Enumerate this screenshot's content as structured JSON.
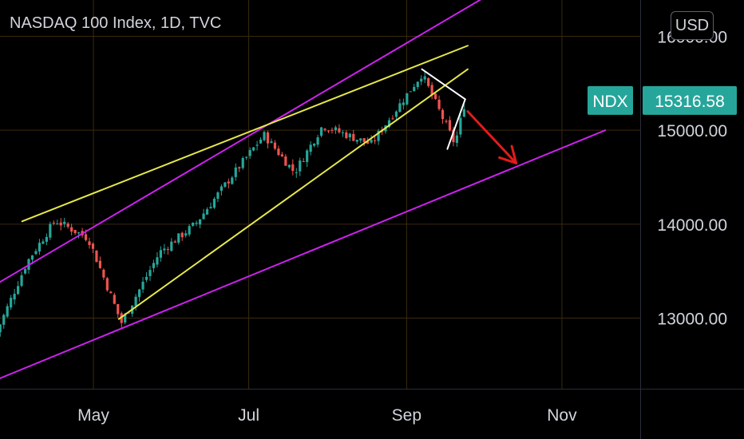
{
  "header": {
    "title": "NASDAQ 100 Index, 1D, TVC",
    "currency_button": "USD"
  },
  "colors": {
    "background": "#000000",
    "grid": "#3a2a10",
    "up": "#26a69a",
    "down": "#ef5350",
    "channel": "#cc22ee",
    "wedge": "#e6e84a",
    "flag": "#ffffff",
    "arrow": "#e31b1b",
    "tag": "#26a69a"
  },
  "chart_data": {
    "type": "candlestick",
    "title": "NASDAQ 100 Index, 1D, TVC",
    "symbol": "NDX",
    "last_price": "15316.58",
    "currency": "USD",
    "y_ticks": [
      "13000.00",
      "14000.00",
      "15000.00",
      "16000.00"
    ],
    "x_ticks": [
      "May",
      "Jul",
      "Sep",
      "Nov"
    ],
    "grid": true,
    "ylim": [
      12220,
      16600
    ],
    "price_path_approx": [
      {
        "date": "2021-03-24",
        "close": 12850
      },
      {
        "date": "2021-04-05",
        "close": 13600
      },
      {
        "date": "2021-04-16",
        "close": 14040
      },
      {
        "date": "2021-04-29",
        "close": 13850
      },
      {
        "date": "2021-05-12",
        "close": 12950
      },
      {
        "date": "2021-05-27",
        "close": 13700
      },
      {
        "date": "2021-06-10",
        "close": 14000
      },
      {
        "date": "2021-06-24",
        "close": 14500
      },
      {
        "date": "2021-07-07",
        "close": 14950
      },
      {
        "date": "2021-07-19",
        "close": 14550
      },
      {
        "date": "2021-07-30",
        "close": 15050
      },
      {
        "date": "2021-08-18",
        "close": 14850
      },
      {
        "date": "2021-09-07",
        "close": 15600
      },
      {
        "date": "2021-09-20",
        "close": 14850
      },
      {
        "date": "2021-09-24",
        "close": 15316.58
      }
    ],
    "drawings": [
      {
        "name": "upper-channel-line",
        "color": "#cc22ee",
        "from": {
          "date": "2021-03-20",
          "value": 13300
        },
        "to": {
          "date": "2021-10-27",
          "value": 16820
        }
      },
      {
        "name": "lower-channel-line",
        "color": "#cc22ee",
        "from": {
          "date": "2021-03-20",
          "value": 12300
        },
        "to": {
          "date": "2021-11-18",
          "value": 15000
        }
      },
      {
        "name": "wedge-upper-line",
        "color": "#e6e84a",
        "from": {
          "date": "2021-04-03",
          "value": 14030
        },
        "to": {
          "date": "2021-09-25",
          "value": 15900
        }
      },
      {
        "name": "wedge-lower-line",
        "color": "#e6e84a",
        "from": {
          "date": "2021-05-11",
          "value": 12990
        },
        "to": {
          "date": "2021-09-25",
          "value": 15650
        }
      },
      {
        "name": "flag-line-1",
        "color": "#ffffff",
        "from": {
          "date": "2021-09-07",
          "value": 15650
        },
        "to": {
          "date": "2021-09-24",
          "value": 15330
        }
      },
      {
        "name": "flag-line-2",
        "color": "#ffffff",
        "from": {
          "date": "2021-09-24",
          "value": 15330
        },
        "to": {
          "date": "2021-09-17",
          "value": 14800
        }
      },
      {
        "name": "forecast-arrow",
        "color": "#e31b1b",
        "from": {
          "date": "2021-09-25",
          "value": 15200
        },
        "to": {
          "date": "2021-10-14",
          "value": 14650
        }
      }
    ]
  }
}
